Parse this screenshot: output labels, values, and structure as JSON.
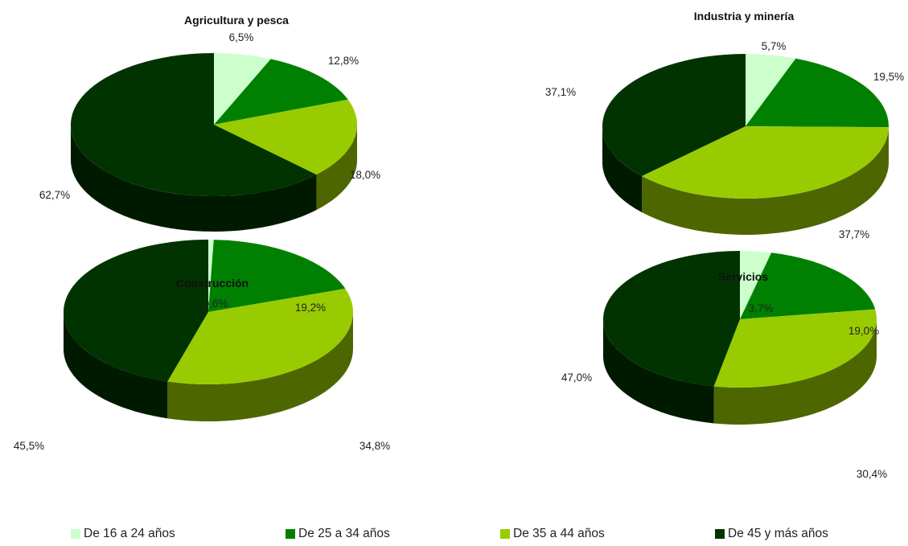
{
  "chart_data": [
    {
      "type": "pie",
      "title": "Agricultura y pesca",
      "categories": [
        "De 16 a 24 años",
        "De 25 a 34 años",
        "De 35 a 44 años",
        "De 45 y más años"
      ],
      "values": [
        6.5,
        12.8,
        18.0,
        62.7
      ],
      "labels": [
        "6,5%",
        "12,8%",
        "18,0%",
        "62,7%"
      ]
    },
    {
      "type": "pie",
      "title": "Industria y minería",
      "categories": [
        "De 16 a 24 años",
        "De 25 a 34 años",
        "De 35 a 44 años",
        "De 45 y más años"
      ],
      "values": [
        5.7,
        19.5,
        37.7,
        37.1
      ],
      "labels": [
        "5,7%",
        "19,5%",
        "37,7%",
        "37,1%"
      ]
    },
    {
      "type": "pie",
      "title": "Construcción",
      "categories": [
        "De 16 a 24 años",
        "De 25 a 34 años",
        "De 35 a 44 años",
        "De 45 y más años"
      ],
      "values": [
        0.6,
        19.2,
        34.8,
        45.5
      ],
      "labels": [
        "0,6%",
        "19,2%",
        "34,8%",
        "45,5%"
      ]
    },
    {
      "type": "pie",
      "title": "Servicios",
      "categories": [
        "De 16 a 24 años",
        "De 25 a 34 años",
        "De 35 a 44 años",
        "De 45 y más años"
      ],
      "values": [
        3.7,
        19.0,
        30.4,
        47.0
      ],
      "labels": [
        "3,7%",
        "19,0%",
        "30,4%",
        "47,0%"
      ]
    }
  ],
  "legend": {
    "placement": "bottom",
    "items": [
      {
        "label": "De 16 a 24 años",
        "color": "#ccffcc"
      },
      {
        "label": "De 25 a 34 años",
        "color": "#008000"
      },
      {
        "label": "De 35 a 44 años",
        "color": "#99cc00"
      },
      {
        "label": "De 45 y más años",
        "color": "#003300"
      }
    ]
  },
  "side_colors": [
    "#a3cca3",
    "#006600",
    "#4d6600",
    "#001a00"
  ]
}
